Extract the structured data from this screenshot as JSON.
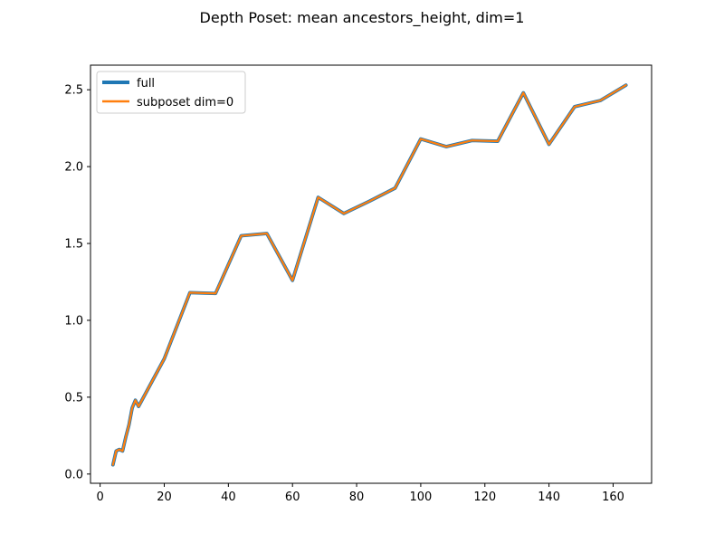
{
  "chart_data": {
    "type": "line",
    "title": "Depth Poset: mean ancestors_height, dim=1",
    "xlabel": "",
    "ylabel": "",
    "xlim": [
      -3,
      172
    ],
    "ylim": [
      -0.06,
      2.66
    ],
    "xticks": [
      0,
      20,
      40,
      60,
      80,
      100,
      120,
      140,
      160
    ],
    "yticks": [
      0.0,
      0.5,
      1.0,
      1.5,
      2.0,
      2.5
    ],
    "xtick_labels": [
      "0",
      "20",
      "40",
      "60",
      "80",
      "100",
      "120",
      "140",
      "160"
    ],
    "ytick_labels": [
      "0.0",
      "0.5",
      "1.0",
      "1.5",
      "2.0",
      "2.5"
    ],
    "grid": false,
    "legend_position": "upper left",
    "x": [
      4,
      5,
      6,
      7,
      8,
      9,
      10,
      11,
      12,
      20,
      28,
      36,
      44,
      52,
      60,
      68,
      76,
      84,
      92,
      100,
      108,
      116,
      124,
      132,
      140,
      148,
      156,
      164
    ],
    "series": [
      {
        "name": "full",
        "color": "#1f77b4",
        "values": [
          0.06,
          0.15,
          0.16,
          0.15,
          0.24,
          0.32,
          0.43,
          0.48,
          0.44,
          0.75,
          1.18,
          1.175,
          1.55,
          1.565,
          1.26,
          1.8,
          1.695,
          1.775,
          1.86,
          2.18,
          2.13,
          2.17,
          2.165,
          2.48,
          2.145,
          2.39,
          2.43,
          2.53
        ]
      },
      {
        "name": "subposet dim=0",
        "color": "#ff7f0e",
        "values": [
          0.06,
          0.15,
          0.16,
          0.15,
          0.24,
          0.32,
          0.43,
          0.48,
          0.44,
          0.75,
          1.18,
          1.175,
          1.55,
          1.565,
          1.26,
          1.8,
          1.695,
          1.775,
          1.86,
          2.18,
          2.13,
          2.17,
          2.165,
          2.48,
          2.145,
          2.39,
          2.43,
          2.53
        ]
      }
    ]
  }
}
